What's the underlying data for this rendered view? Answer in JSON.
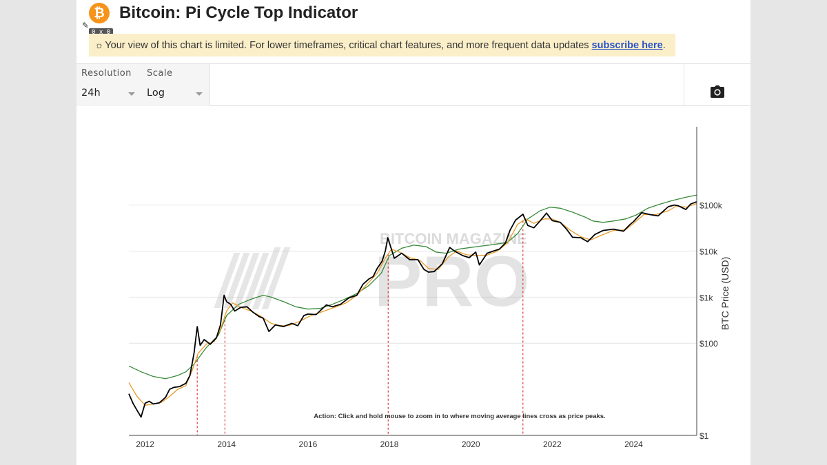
{
  "header": {
    "logo_glyph": "₿",
    "title": "Bitcoin: Pi Cycle Top Indicator"
  },
  "size_badge": "0 x 0",
  "notice": {
    "icon": "sun-icon",
    "text": "Your view of this chart is limited. For lower timeframes, critical chart features, and more frequent data updates ",
    "link_text": "subscribe here",
    "suffix": "."
  },
  "controls": {
    "resolution_label": "Resolution",
    "resolution_value": "24h",
    "scale_label": "Scale",
    "scale_value": "Log",
    "camera_icon": "camera-icon"
  },
  "watermark": {
    "top": "BITCOIN MAGAZINE",
    "main": "PRO"
  },
  "colors": {
    "price": "#000000",
    "ma_111": "#e89a2a",
    "ma_350x2": "#3a8a3a",
    "cross": "#e03a3a",
    "notice_bg": "#fbefc9",
    "link": "#2a54c8",
    "brand": "#f7931a"
  },
  "chart_data": {
    "type": "line",
    "title": "",
    "ylabel": "BTC Price (USD)",
    "xlabel": "",
    "x_ticks": [
      "2012",
      "2014",
      "2016",
      "2018",
      "2020",
      "2022",
      "2024"
    ],
    "y_scale": "log",
    "y_ticks": [
      {
        "value": 1,
        "label": "$1"
      },
      {
        "value": 100,
        "label": "$100"
      },
      {
        "value": 1000,
        "label": "$1k"
      },
      {
        "value": 10000,
        "label": "$10k"
      },
      {
        "value": 100000,
        "label": "$100k"
      }
    ],
    "x_range": [
      2011.6,
      2025.55
    ],
    "y_range": [
      1,
      5000000
    ],
    "grid": true,
    "annotation": "Action: Click and hold mouse to zoom in to where moving average lines cross as price peaks.",
    "cross_dates": [
      2013.28,
      2013.96,
      2017.97,
      2021.28
    ],
    "series": [
      {
        "key": "price",
        "points": [
          [
            2011.6,
            8
          ],
          [
            2011.7,
            5
          ],
          [
            2011.8,
            3.5
          ],
          [
            2011.9,
            2.5
          ],
          [
            2012.0,
            5
          ],
          [
            2012.1,
            5.5
          ],
          [
            2012.2,
            4.8
          ],
          [
            2012.35,
            5.1
          ],
          [
            2012.5,
            6.7
          ],
          [
            2012.6,
            10
          ],
          [
            2012.7,
            11
          ],
          [
            2012.85,
            11.5
          ],
          [
            2013.0,
            13.5
          ],
          [
            2013.1,
            20
          ],
          [
            2013.2,
            60
          ],
          [
            2013.28,
            230
          ],
          [
            2013.35,
            90
          ],
          [
            2013.45,
            120
          ],
          [
            2013.6,
            95
          ],
          [
            2013.75,
            130
          ],
          [
            2013.85,
            250
          ],
          [
            2013.94,
            1100
          ],
          [
            2014.0,
            800
          ],
          [
            2014.1,
            700
          ],
          [
            2014.2,
            500
          ],
          [
            2014.35,
            600
          ],
          [
            2014.5,
            620
          ],
          [
            2014.65,
            470
          ],
          [
            2014.8,
            380
          ],
          [
            2014.9,
            350
          ],
          [
            2015.04,
            180
          ],
          [
            2015.2,
            250
          ],
          [
            2015.4,
            230
          ],
          [
            2015.6,
            270
          ],
          [
            2015.75,
            240
          ],
          [
            2015.9,
            400
          ],
          [
            2016.0,
            430
          ],
          [
            2016.2,
            420
          ],
          [
            2016.45,
            680
          ],
          [
            2016.6,
            620
          ],
          [
            2016.8,
            700
          ],
          [
            2017.0,
            960
          ],
          [
            2017.2,
            1100
          ],
          [
            2017.35,
            1900
          ],
          [
            2017.5,
            2500
          ],
          [
            2017.6,
            2800
          ],
          [
            2017.7,
            4200
          ],
          [
            2017.82,
            6000
          ],
          [
            2017.9,
            10000
          ],
          [
            2017.96,
            19500
          ],
          [
            2018.05,
            11000
          ],
          [
            2018.12,
            7000
          ],
          [
            2018.3,
            9000
          ],
          [
            2018.5,
            6500
          ],
          [
            2018.7,
            6500
          ],
          [
            2018.85,
            4000
          ],
          [
            2018.96,
            3500
          ],
          [
            2019.1,
            3600
          ],
          [
            2019.3,
            5300
          ],
          [
            2019.48,
            12000
          ],
          [
            2019.6,
            10000
          ],
          [
            2019.8,
            8000
          ],
          [
            2019.96,
            7200
          ],
          [
            2020.12,
            9500
          ],
          [
            2020.21,
            5000
          ],
          [
            2020.4,
            9000
          ],
          [
            2020.55,
            10000
          ],
          [
            2020.7,
            11000
          ],
          [
            2020.85,
            15000
          ],
          [
            2020.96,
            28000
          ],
          [
            2021.1,
            47000
          ],
          [
            2021.28,
            63000
          ],
          [
            2021.4,
            36000
          ],
          [
            2021.55,
            32000
          ],
          [
            2021.7,
            45000
          ],
          [
            2021.86,
            67000
          ],
          [
            2022.0,
            46000
          ],
          [
            2022.2,
            42000
          ],
          [
            2022.35,
            30000
          ],
          [
            2022.5,
            20000
          ],
          [
            2022.7,
            19500
          ],
          [
            2022.87,
            16000
          ],
          [
            2023.05,
            23000
          ],
          [
            2023.25,
            28000
          ],
          [
            2023.5,
            30000
          ],
          [
            2023.75,
            27000
          ],
          [
            2023.9,
            37000
          ],
          [
            2024.0,
            44000
          ],
          [
            2024.2,
            68000
          ],
          [
            2024.4,
            62000
          ],
          [
            2024.6,
            58000
          ],
          [
            2024.85,
            92000
          ],
          [
            2025.0,
            100000
          ],
          [
            2025.1,
            96000
          ],
          [
            2025.28,
            80000
          ],
          [
            2025.4,
            105000
          ],
          [
            2025.55,
            118000
          ]
        ]
      },
      {
        "key": "ma_111",
        "points": [
          [
            2011.6,
            14
          ],
          [
            2011.8,
            7
          ],
          [
            2012.0,
            4.5
          ],
          [
            2012.2,
            4.8
          ],
          [
            2012.4,
            5.2
          ],
          [
            2012.6,
            7
          ],
          [
            2012.8,
            10
          ],
          [
            2013.0,
            12
          ],
          [
            2013.15,
            25
          ],
          [
            2013.3,
            60
          ],
          [
            2013.5,
            95
          ],
          [
            2013.7,
            110
          ],
          [
            2013.85,
            200
          ],
          [
            2014.0,
            500
          ],
          [
            2014.15,
            750
          ],
          [
            2014.35,
            600
          ],
          [
            2014.6,
            500
          ],
          [
            2014.85,
            380
          ],
          [
            2015.1,
            270
          ],
          [
            2015.3,
            240
          ],
          [
            2015.55,
            245
          ],
          [
            2015.8,
            300
          ],
          [
            2016.05,
            390
          ],
          [
            2016.4,
            500
          ],
          [
            2016.7,
            620
          ],
          [
            2016.95,
            760
          ],
          [
            2017.2,
            1100
          ],
          [
            2017.45,
            1900
          ],
          [
            2017.7,
            3300
          ],
          [
            2017.9,
            7000
          ],
          [
            2018.05,
            11000
          ],
          [
            2018.25,
            9500
          ],
          [
            2018.5,
            7200
          ],
          [
            2018.75,
            6300
          ],
          [
            2018.96,
            4200
          ],
          [
            2019.2,
            4000
          ],
          [
            2019.45,
            7500
          ],
          [
            2019.65,
            10000
          ],
          [
            2019.9,
            8300
          ],
          [
            2020.15,
            8000
          ],
          [
            2020.4,
            8200
          ],
          [
            2020.65,
            10000
          ],
          [
            2020.9,
            15000
          ],
          [
            2021.15,
            38000
          ],
          [
            2021.35,
            50000
          ],
          [
            2021.55,
            40000
          ],
          [
            2021.8,
            50000
          ],
          [
            2022.0,
            50000
          ],
          [
            2022.2,
            42000
          ],
          [
            2022.45,
            28000
          ],
          [
            2022.7,
            20500
          ],
          [
            2022.95,
            17500
          ],
          [
            2023.2,
            22000
          ],
          [
            2023.5,
            28000
          ],
          [
            2023.8,
            29000
          ],
          [
            2024.0,
            40000
          ],
          [
            2024.25,
            62000
          ],
          [
            2024.55,
            62000
          ],
          [
            2024.85,
            75000
          ],
          [
            2025.05,
            95000
          ],
          [
            2025.3,
            90000
          ],
          [
            2025.55,
            108000
          ]
        ]
      },
      {
        "key": "ma_350x2",
        "points": [
          [
            2011.6,
            32
          ],
          [
            2011.9,
            24
          ],
          [
            2012.2,
            19
          ],
          [
            2012.5,
            17
          ],
          [
            2012.8,
            20
          ],
          [
            2013.0,
            24
          ],
          [
            2013.2,
            35
          ],
          [
            2013.5,
            80
          ],
          [
            2013.8,
            150
          ],
          [
            2014.0,
            400
          ],
          [
            2014.3,
            700
          ],
          [
            2014.6,
            900
          ],
          [
            2014.9,
            1100
          ],
          [
            2015.1,
            1000
          ],
          [
            2015.4,
            800
          ],
          [
            2015.7,
            620
          ],
          [
            2016.0,
            550
          ],
          [
            2016.3,
            570
          ],
          [
            2016.6,
            700
          ],
          [
            2016.9,
            900
          ],
          [
            2017.2,
            1200
          ],
          [
            2017.5,
            1800
          ],
          [
            2017.8,
            3300
          ],
          [
            2018.0,
            8000
          ],
          [
            2018.3,
            11500
          ],
          [
            2018.6,
            13500
          ],
          [
            2018.9,
            12500
          ],
          [
            2019.15,
            9500
          ],
          [
            2019.4,
            9000
          ],
          [
            2019.7,
            11000
          ],
          [
            2020.0,
            12000
          ],
          [
            2020.3,
            13000
          ],
          [
            2020.6,
            14000
          ],
          [
            2020.9,
            15500
          ],
          [
            2021.15,
            24000
          ],
          [
            2021.4,
            50000
          ],
          [
            2021.7,
            75000
          ],
          [
            2021.95,
            90000
          ],
          [
            2022.2,
            85000
          ],
          [
            2022.5,
            70000
          ],
          [
            2022.8,
            55000
          ],
          [
            2023.0,
            45000
          ],
          [
            2023.25,
            42000
          ],
          [
            2023.5,
            45000
          ],
          [
            2023.8,
            50000
          ],
          [
            2024.05,
            60000
          ],
          [
            2024.35,
            85000
          ],
          [
            2024.65,
            105000
          ],
          [
            2024.95,
            125000
          ],
          [
            2025.25,
            145000
          ],
          [
            2025.55,
            165000
          ]
        ]
      }
    ]
  }
}
